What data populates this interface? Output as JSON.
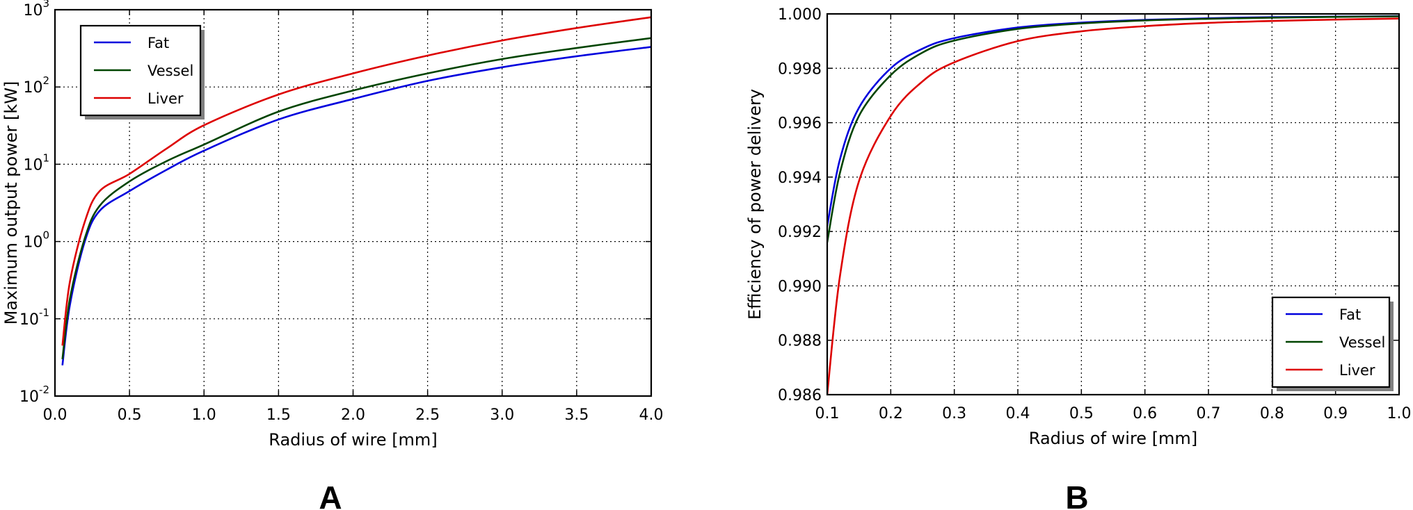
{
  "chart_data": [
    {
      "panel_label": "A",
      "type": "line",
      "xlabel": "Radius of wire [mm]",
      "ylabel": "Maximum output power [kW]",
      "xlim": [
        0.0,
        4.0
      ],
      "ylim": [
        0.01,
        1000
      ],
      "yscale": "log",
      "grid": true,
      "legend_position": "top-left",
      "x_ticks": [
        "0.0",
        "0.5",
        "1.0",
        "1.5",
        "2.0",
        "2.5",
        "3.0",
        "3.5",
        "4.0"
      ],
      "y_ticks": [
        {
          "base": "10",
          "exp": "-2"
        },
        {
          "base": "10",
          "exp": "-1"
        },
        {
          "base": "10",
          "exp": "0"
        },
        {
          "base": "10",
          "exp": "1"
        },
        {
          "base": "10",
          "exp": "2"
        },
        {
          "base": "10",
          "exp": "3"
        }
      ],
      "x": [
        0.05,
        0.1,
        0.2,
        0.3,
        0.5,
        0.75,
        1.0,
        1.5,
        2.0,
        2.5,
        3.0,
        3.5,
        4.0
      ],
      "series": [
        {
          "name": "Fat",
          "color": "#0000dd",
          "values": [
            0.025,
            0.15,
            1.0,
            2.5,
            4.5,
            8.5,
            15,
            38,
            70,
            120,
            180,
            250,
            330
          ]
        },
        {
          "name": "Vessel",
          "color": "#004400",
          "values": [
            0.03,
            0.18,
            1.1,
            2.9,
            6.0,
            11,
            18,
            48,
            90,
            150,
            230,
            320,
            430
          ]
        },
        {
          "name": "Liver",
          "color": "#dd0000",
          "values": [
            0.045,
            0.3,
            1.8,
            4.5,
            7.5,
            16,
            32,
            80,
            150,
            255,
            400,
            580,
            800
          ]
        }
      ]
    },
    {
      "panel_label": "B",
      "type": "line",
      "xlabel": "Radius of wire [mm]",
      "ylabel": "Efficiency of power delivery",
      "xlim": [
        0.1,
        1.0
      ],
      "ylim": [
        0.986,
        1.0
      ],
      "grid": true,
      "legend_position": "lower-right",
      "x_ticks": [
        "0.1",
        "0.2",
        "0.3",
        "0.4",
        "0.5",
        "0.6",
        "0.7",
        "0.8",
        "0.9",
        "1.0"
      ],
      "y_ticks": [
        "0.986",
        "0.988",
        "0.990",
        "0.992",
        "0.994",
        "0.996",
        "0.998",
        "1.000"
      ],
      "x": [
        0.1,
        0.12,
        0.15,
        0.2,
        0.25,
        0.3,
        0.4,
        0.5,
        0.6,
        0.7,
        0.8,
        0.9,
        1.0
      ],
      "series": [
        {
          "name": "Fat",
          "color": "#0000dd",
          "values": [
            0.9922,
            0.99465,
            0.99655,
            0.998,
            0.99872,
            0.99911,
            0.9995,
            0.99968,
            0.99978,
            0.99984,
            0.99988,
            0.9999,
            0.99992
          ]
        },
        {
          "name": "Vessel",
          "color": "#004400",
          "values": [
            0.9916,
            0.99415,
            0.99625,
            0.99775,
            0.99858,
            0.99902,
            0.99945,
            0.99965,
            0.99976,
            0.99982,
            0.99986,
            0.99989,
            0.99991
          ]
        },
        {
          "name": "Liver",
          "color": "#dd0000",
          "values": [
            0.986,
            0.99035,
            0.99385,
            0.99625,
            0.99752,
            0.99822,
            0.999,
            0.99936,
            0.99955,
            0.99967,
            0.99974,
            0.99979,
            0.99983
          ]
        }
      ]
    }
  ]
}
